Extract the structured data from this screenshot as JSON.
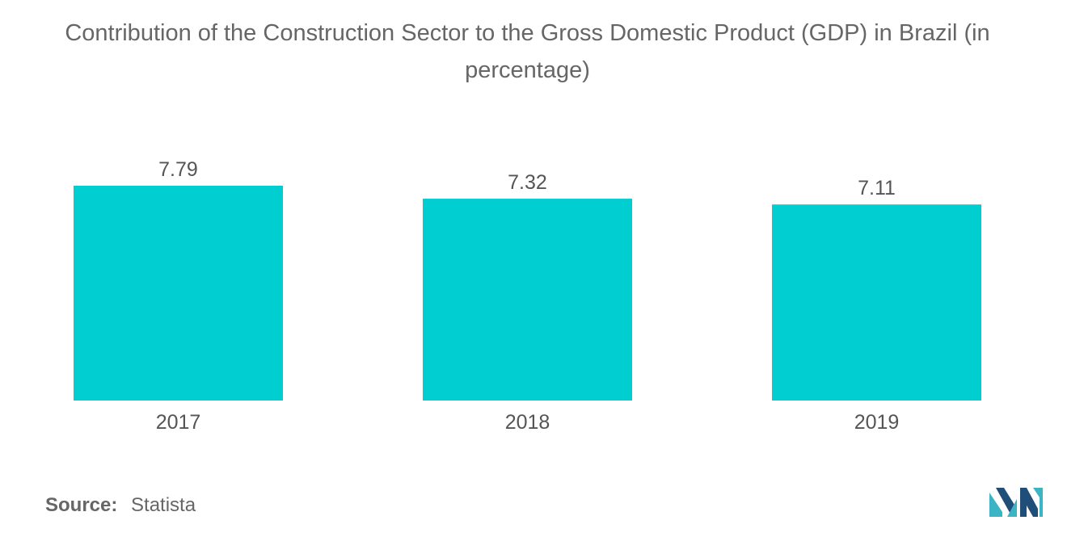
{
  "header": {
    "title": "Contribution of the Construction Sector to the Gross Domestic Product (GDP) in Brazil (in percentage)"
  },
  "footer": {
    "source_label": "Source:",
    "source_value": "Statista",
    "logo_icon": "mordor-intelligence-logo-icon"
  },
  "colors": {
    "bar": "#00CED1",
    "text": "#555555",
    "logo_dark": "#1F4E79",
    "logo_light": "#3BB5C4"
  },
  "chart_data": {
    "type": "bar",
    "categories": [
      "2017",
      "2018",
      "2019"
    ],
    "values": [
      7.79,
      7.32,
      7.11
    ],
    "data_labels": [
      "7.79",
      "7.32",
      "7.11"
    ],
    "title": "Contribution of the Construction Sector to the Gross Domestic Product (GDP) in Brazil (in percentage)",
    "xlabel": "",
    "ylabel": "",
    "ylim": [
      0,
      7.79
    ],
    "grid": false,
    "legend": "none"
  }
}
